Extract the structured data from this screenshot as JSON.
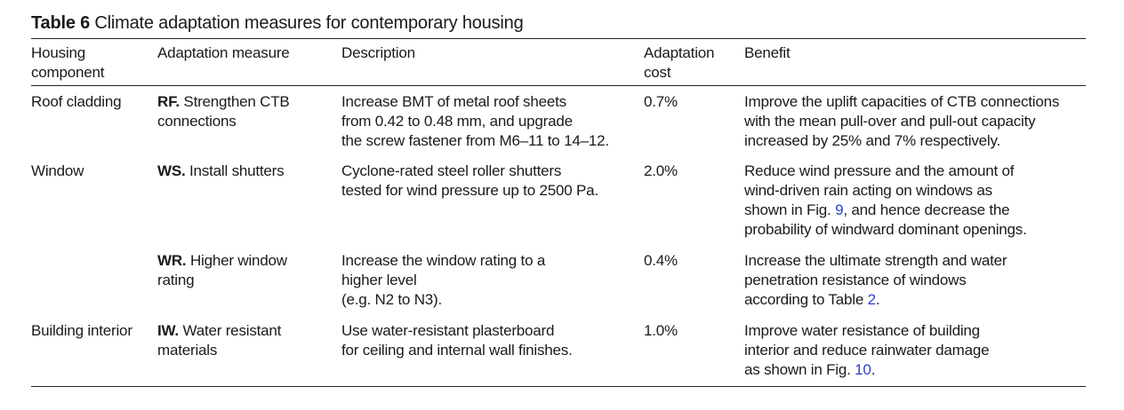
{
  "caption": {
    "label": "Table 6",
    "text": "Climate adaptation measures for contemporary housing"
  },
  "headers": {
    "component": [
      "Housing",
      "component"
    ],
    "measure": [
      "Adaptation measure"
    ],
    "description": [
      "Description"
    ],
    "cost": [
      "Adaptation",
      "cost"
    ],
    "benefit": [
      "Benefit"
    ]
  },
  "rows": [
    {
      "component": "Roof cladding",
      "measure_code": "RF.",
      "measure_lines": [
        " Strengthen CTB",
        "connections"
      ],
      "description_lines": [
        "Increase BMT of metal roof sheets",
        "from 0.42 to 0.48 mm, and upgrade",
        "the screw fastener from M6–11 to 14–12."
      ],
      "cost": "0.7%",
      "benefit_lines": [
        "Improve the uplift capacities of CTB connections",
        "with the mean pull-over and pull-out capacity",
        "increased by 25% and 7% respectively."
      ]
    },
    {
      "component": "Window",
      "measure_code": "WS.",
      "measure_lines": [
        " Install shutters"
      ],
      "description_lines": [
        "Cyclone-rated steel roller shutters",
        "tested for wind pressure up to 2500 Pa."
      ],
      "cost": "2.0%",
      "benefit_lines": [
        "Reduce wind pressure and the amount of",
        "wind-driven rain acting on windows as"
      ],
      "benefit_ref_pre": "shown in Fig. ",
      "benefit_ref": "9",
      "benefit_ref_post": ", and hence decrease the",
      "benefit_last": "probability of windward dominant openings."
    },
    {
      "component": "",
      "measure_code": "WR.",
      "measure_lines": [
        " Higher window",
        "rating"
      ],
      "description_lines": [
        "Increase the window rating to a",
        "higher level",
        "(e.g. N2 to N3)."
      ],
      "cost": "0.4%",
      "benefit_lines": [
        "Increase the ultimate strength and water",
        "penetration resistance of windows"
      ],
      "benefit_ref_pre": "according to Table ",
      "benefit_ref": "2",
      "benefit_ref_post": "."
    },
    {
      "component": "Building interior",
      "measure_code": "IW.",
      "measure_lines": [
        " Water resistant",
        "materials"
      ],
      "description_lines": [
        "Use water-resistant plasterboard",
        "for ceiling and internal wall finishes."
      ],
      "cost": "1.0%",
      "benefit_lines": [
        "Improve water resistance of building",
        "interior and reduce rainwater damage"
      ],
      "benefit_ref_pre": "as shown in Fig. ",
      "benefit_ref": "10",
      "benefit_ref_post": "."
    }
  ]
}
